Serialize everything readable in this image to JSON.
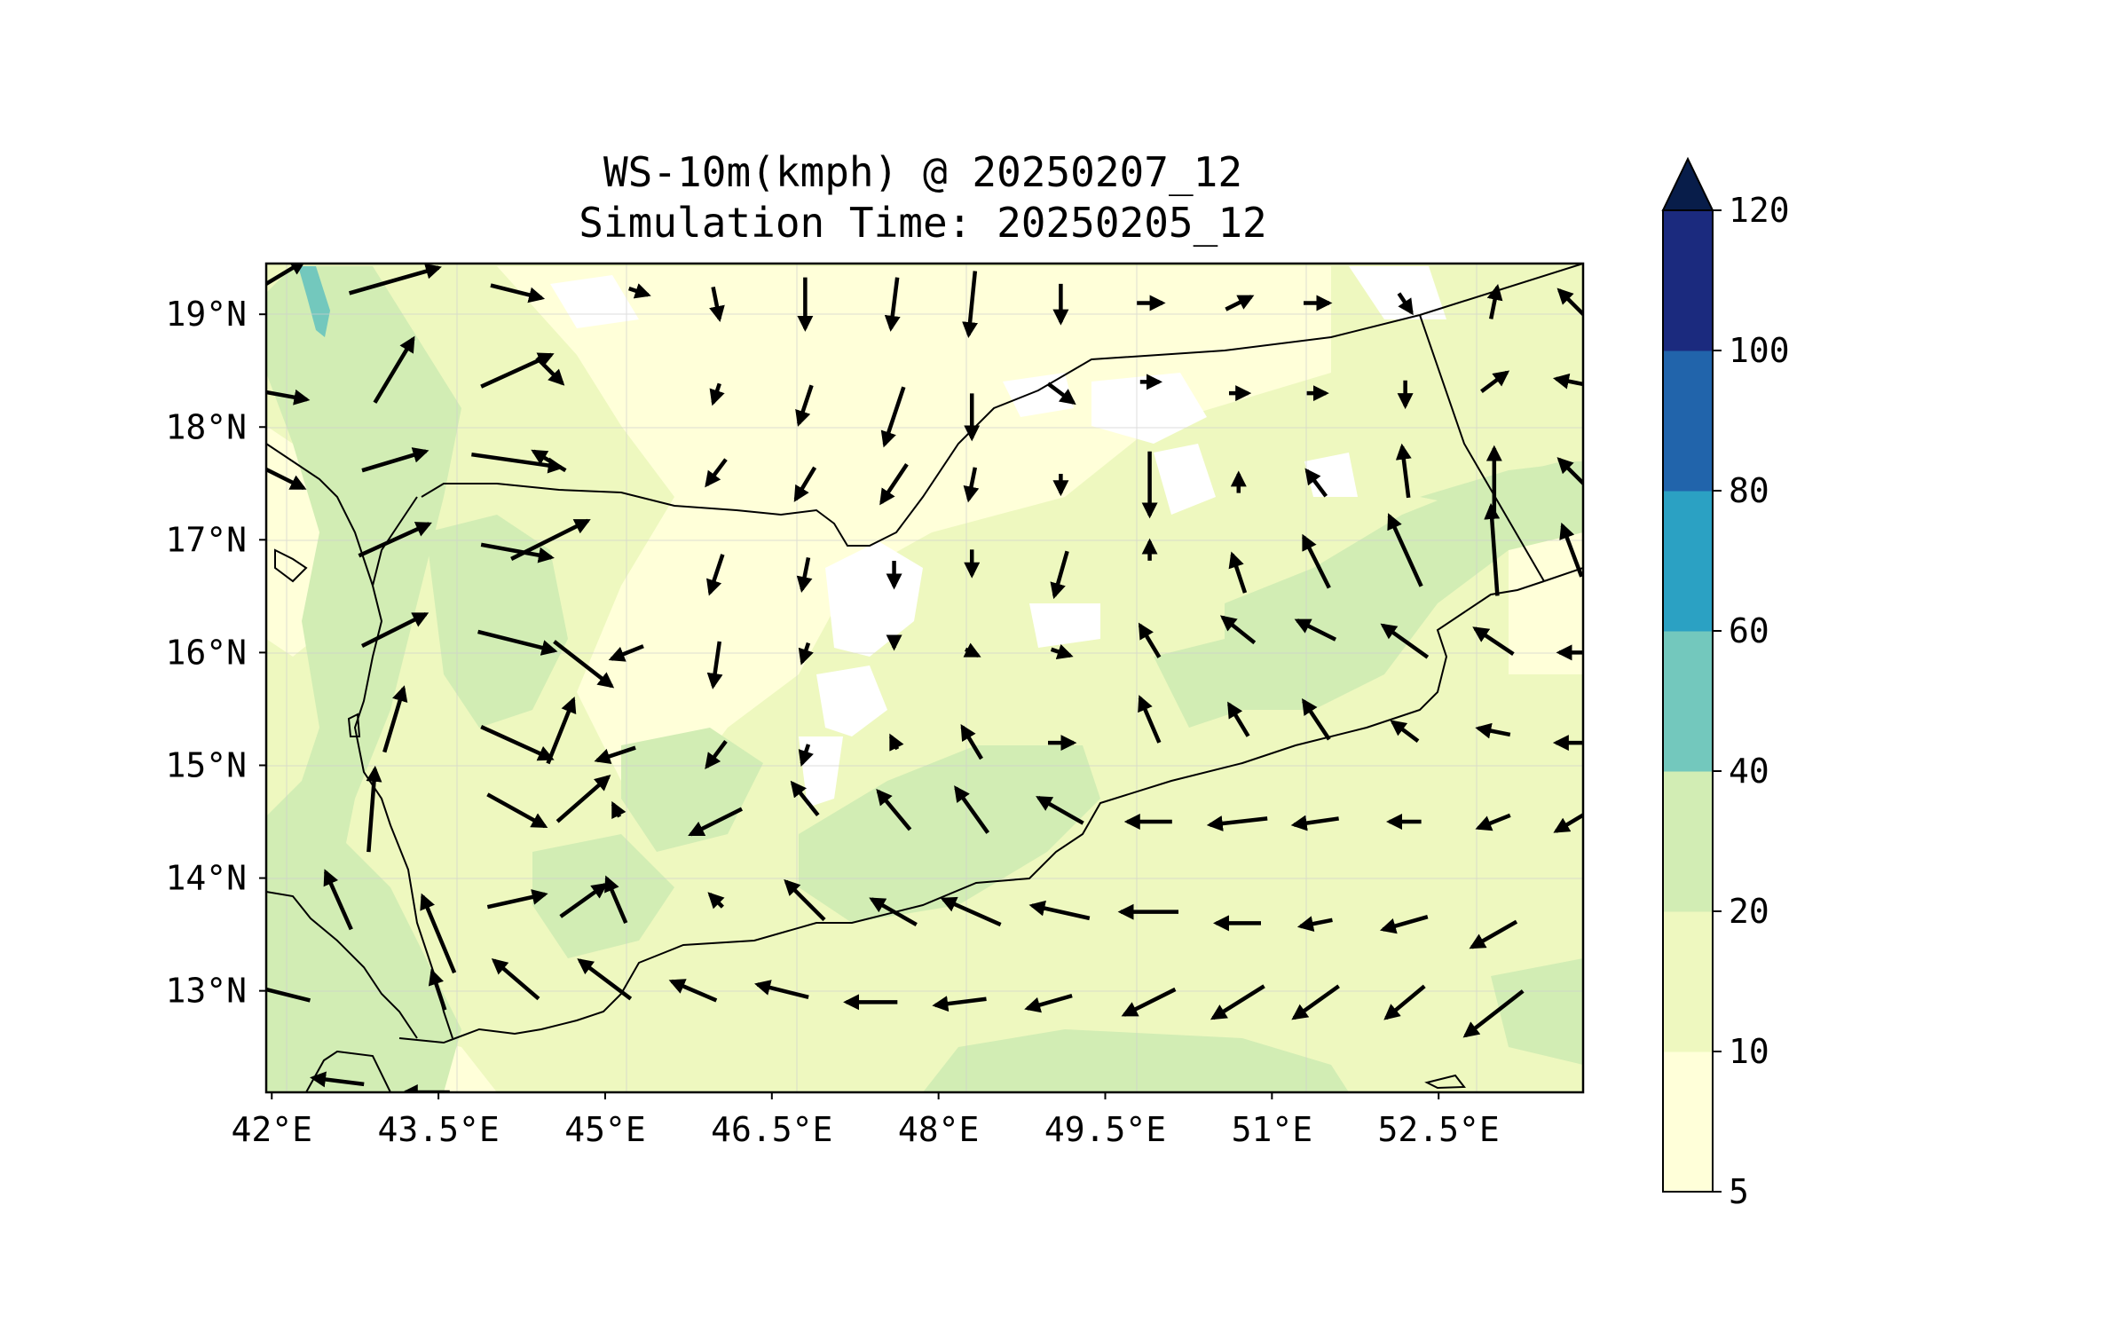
{
  "title": {
    "line1": "WS-10m(kmph) @ 20250207_12",
    "line2": "Simulation Time: 20250205_12"
  },
  "map": {
    "extent": {
      "lon": [
        41.95,
        53.8
      ],
      "lat": [
        12.1,
        19.45
      ]
    },
    "x_ticks": [
      {
        "lon": 42.0,
        "label": "42°E"
      },
      {
        "lon": 43.5,
        "label": "43.5°E"
      },
      {
        "lon": 45.0,
        "label": "45°E"
      },
      {
        "lon": 46.5,
        "label": "46.5°E"
      },
      {
        "lon": 48.0,
        "label": "48°E"
      },
      {
        "lon": 49.5,
        "label": "49.5°E"
      },
      {
        "lon": 51.0,
        "label": "51°E"
      },
      {
        "lon": 52.5,
        "label": "52.5°E"
      }
    ],
    "y_ticks": [
      {
        "lat": 13.0,
        "label": "13°N"
      },
      {
        "lat": 14.0,
        "label": "14°N"
      },
      {
        "lat": 15.0,
        "label": "15°N"
      },
      {
        "lat": 16.0,
        "label": "16°N"
      },
      {
        "lat": 17.0,
        "label": "17°N"
      },
      {
        "lat": 18.0,
        "label": "18°N"
      },
      {
        "lat": 19.0,
        "label": "19°N"
      }
    ],
    "field_colors": {
      "white": "#ffffff",
      "5-10": "#ffffd9",
      "10-20": "#eef8bf",
      "20-40": "#d2edb4",
      "40-60": "#73c8bd"
    },
    "coastline_color": "#000000"
  },
  "colorbar": {
    "levels": [
      {
        "label": "5",
        "color": "#ffffd9"
      },
      {
        "label": "10",
        "color": "#eef8bf"
      },
      {
        "label": "20",
        "color": "#d2edb4"
      },
      {
        "label": "40",
        "color": "#73c8bd"
      },
      {
        "label": "60",
        "color": "#2ba1c3"
      },
      {
        "label": "80",
        "color": "#2164ab"
      },
      {
        "label": "100",
        "color": "#1b2a7e"
      },
      {
        "label": "120",
        "color": "#081d4a"
      }
    ],
    "extend": "max"
  },
  "chart_data": {
    "type": "quiver-map",
    "variable": "WS-10m(kmph)",
    "valid_time": "20250207_12",
    "simulation_time": "20250205_12",
    "wind_vectors_note_units": "u,v in kmph (approximate, read from arrow length/direction)",
    "wind_vectors": [
      [
        42.0,
        19.3,
        10,
        6
      ],
      [
        43.1,
        19.3,
        14,
        4
      ],
      [
        44.2,
        19.2,
        8,
        -2
      ],
      [
        45.3,
        19.2,
        3,
        -1
      ],
      [
        46.0,
        19.1,
        1,
        -5
      ],
      [
        46.8,
        19.1,
        0,
        -8
      ],
      [
        47.6,
        19.1,
        -1,
        -8
      ],
      [
        48.3,
        19.1,
        -1,
        -10
      ],
      [
        49.1,
        19.1,
        0,
        -6
      ],
      [
        49.9,
        19.1,
        4,
        0
      ],
      [
        50.7,
        19.1,
        4,
        2
      ],
      [
        51.4,
        19.1,
        4,
        0
      ],
      [
        52.2,
        19.1,
        2,
        -3
      ],
      [
        53.0,
        19.1,
        1,
        5
      ],
      [
        53.7,
        19.1,
        -4,
        4
      ],
      [
        42.0,
        18.3,
        11,
        -2
      ],
      [
        43.1,
        18.5,
        6,
        10
      ],
      [
        44.2,
        18.5,
        11,
        5
      ],
      [
        44.5,
        18.5,
        4,
        -4
      ],
      [
        46.0,
        18.3,
        -1,
        -3
      ],
      [
        46.8,
        18.2,
        -2,
        -6
      ],
      [
        47.6,
        18.1,
        -3,
        -9
      ],
      [
        48.3,
        18.1,
        0,
        -7
      ],
      [
        49.1,
        18.3,
        4,
        -3
      ],
      [
        49.9,
        18.4,
        3,
        0
      ],
      [
        50.7,
        18.3,
        3,
        0
      ],
      [
        51.4,
        18.3,
        3,
        0
      ],
      [
        52.2,
        18.3,
        0,
        -4
      ],
      [
        53.0,
        18.4,
        4,
        3
      ],
      [
        53.7,
        18.4,
        -5,
        1
      ],
      [
        42.0,
        17.6,
        10,
        -5
      ],
      [
        43.1,
        17.7,
        10,
        3
      ],
      [
        44.2,
        17.7,
        14,
        -2
      ],
      [
        44.5,
        17.7,
        -5,
        3
      ],
      [
        46.0,
        17.6,
        -3,
        -4
      ],
      [
        46.8,
        17.5,
        -3,
        -5
      ],
      [
        47.6,
        17.5,
        -4,
        -6
      ],
      [
        48.3,
        17.5,
        -1,
        -5
      ],
      [
        49.1,
        17.5,
        0,
        -3
      ],
      [
        49.9,
        17.5,
        0,
        -10
      ],
      [
        50.7,
        17.5,
        0,
        3
      ],
      [
        51.4,
        17.5,
        -3,
        4
      ],
      [
        52.2,
        17.6,
        -1,
        8
      ],
      [
        53.0,
        17.5,
        0,
        11
      ],
      [
        53.7,
        17.6,
        -4,
        4
      ],
      [
        43.1,
        17.0,
        11,
        5
      ],
      [
        44.2,
        16.9,
        11,
        -2
      ],
      [
        44.5,
        17.0,
        12,
        6
      ],
      [
        46.0,
        16.7,
        -2,
        -6
      ],
      [
        46.8,
        16.7,
        -1,
        -5
      ],
      [
        47.6,
        16.7,
        0,
        -4
      ],
      [
        48.3,
        16.8,
        0,
        -4
      ],
      [
        49.1,
        16.7,
        -2,
        -7
      ],
      [
        49.9,
        16.9,
        0,
        3
      ],
      [
        50.7,
        16.7,
        -2,
        6
      ],
      [
        51.4,
        16.8,
        -4,
        8
      ],
      [
        52.2,
        16.9,
        -5,
        11
      ],
      [
        53.0,
        16.9,
        -1,
        14
      ],
      [
        53.7,
        16.9,
        -3,
        8
      ],
      [
        43.1,
        16.2,
        10,
        5
      ],
      [
        44.2,
        16.1,
        12,
        -3
      ],
      [
        44.8,
        15.9,
        9,
        -7
      ],
      [
        45.2,
        16.0,
        -5,
        -2
      ],
      [
        46.0,
        15.9,
        -1,
        -7
      ],
      [
        46.8,
        16.0,
        -1,
        -3
      ],
      [
        47.6,
        16.1,
        0,
        -2
      ],
      [
        48.3,
        16.0,
        2,
        -1
      ],
      [
        49.1,
        16.0,
        3,
        -1
      ],
      [
        49.9,
        16.1,
        -3,
        5
      ],
      [
        50.7,
        16.2,
        -5,
        4
      ],
      [
        51.4,
        16.2,
        -6,
        3
      ],
      [
        52.2,
        16.1,
        -7,
        5
      ],
      [
        53.0,
        16.1,
        -6,
        4
      ],
      [
        53.7,
        16.0,
        -4,
        0
      ],
      [
        43.1,
        15.4,
        3,
        10
      ],
      [
        44.2,
        15.2,
        11,
        -5
      ],
      [
        44.6,
        15.3,
        4,
        10
      ],
      [
        45.1,
        15.1,
        -6,
        -2
      ],
      [
        46.0,
        15.1,
        -3,
        -4
      ],
      [
        46.8,
        15.1,
        -1,
        -3
      ],
      [
        47.6,
        15.2,
        -1,
        2
      ],
      [
        48.3,
        15.2,
        -3,
        5
      ],
      [
        49.1,
        15.2,
        4,
        0
      ],
      [
        49.9,
        15.4,
        -3,
        7
      ],
      [
        50.7,
        15.4,
        -3,
        5
      ],
      [
        51.4,
        15.4,
        -4,
        6
      ],
      [
        52.2,
        15.3,
        -4,
        3
      ],
      [
        53.0,
        15.3,
        -5,
        1
      ],
      [
        53.7,
        15.2,
        -5,
        0
      ],
      [
        42.9,
        14.6,
        1,
        13
      ],
      [
        44.2,
        14.6,
        9,
        -5
      ],
      [
        44.8,
        14.7,
        8,
        7
      ],
      [
        45.1,
        14.6,
        -1,
        2
      ],
      [
        46.0,
        14.5,
        -8,
        -4
      ],
      [
        46.8,
        14.7,
        -4,
        5
      ],
      [
        47.6,
        14.6,
        -5,
        6
      ],
      [
        48.3,
        14.6,
        -5,
        7
      ],
      [
        49.1,
        14.6,
        -7,
        4
      ],
      [
        49.9,
        14.5,
        -7,
        0
      ],
      [
        50.7,
        14.5,
        -9,
        -1
      ],
      [
        51.4,
        14.5,
        -7,
        -1
      ],
      [
        52.2,
        14.5,
        -5,
        0
      ],
      [
        53.0,
        14.5,
        -5,
        -2
      ],
      [
        53.7,
        14.5,
        -5,
        -3
      ],
      [
        42.6,
        13.8,
        -4,
        9
      ],
      [
        43.5,
        13.5,
        -5,
        12
      ],
      [
        44.2,
        13.8,
        9,
        2
      ],
      [
        44.8,
        13.8,
        7,
        5
      ],
      [
        45.1,
        13.8,
        -3,
        7
      ],
      [
        46.0,
        13.8,
        -2,
        2
      ],
      [
        46.8,
        13.8,
        -6,
        6
      ],
      [
        47.6,
        13.7,
        -7,
        4
      ],
      [
        48.3,
        13.7,
        -9,
        4
      ],
      [
        49.1,
        13.7,
        -9,
        2
      ],
      [
        49.9,
        13.7,
        -9,
        0
      ],
      [
        50.7,
        13.6,
        -7,
        0
      ],
      [
        51.4,
        13.6,
        -5,
        -1
      ],
      [
        52.2,
        13.6,
        -7,
        -2
      ],
      [
        53.0,
        13.5,
        -7,
        -4
      ],
      [
        42.0,
        13.0,
        -12,
        3
      ],
      [
        43.5,
        13.0,
        -2,
        6
      ],
      [
        44.2,
        13.1,
        -7,
        6
      ],
      [
        45.0,
        13.1,
        -8,
        6
      ],
      [
        45.8,
        13.0,
        -7,
        3
      ],
      [
        46.6,
        13.0,
        -8,
        2
      ],
      [
        47.4,
        12.9,
        -8,
        0
      ],
      [
        48.2,
        12.9,
        -8,
        -1
      ],
      [
        49.0,
        12.9,
        -7,
        -2
      ],
      [
        49.9,
        12.9,
        -8,
        -4
      ],
      [
        50.7,
        12.9,
        -8,
        -5
      ],
      [
        51.4,
        12.9,
        -7,
        -5
      ],
      [
        52.2,
        12.9,
        -6,
        -5
      ],
      [
        53.0,
        12.8,
        -9,
        -7
      ],
      [
        42.6,
        12.2,
        -8,
        1
      ],
      [
        43.4,
        12.1,
        -7,
        0
      ]
    ]
  }
}
